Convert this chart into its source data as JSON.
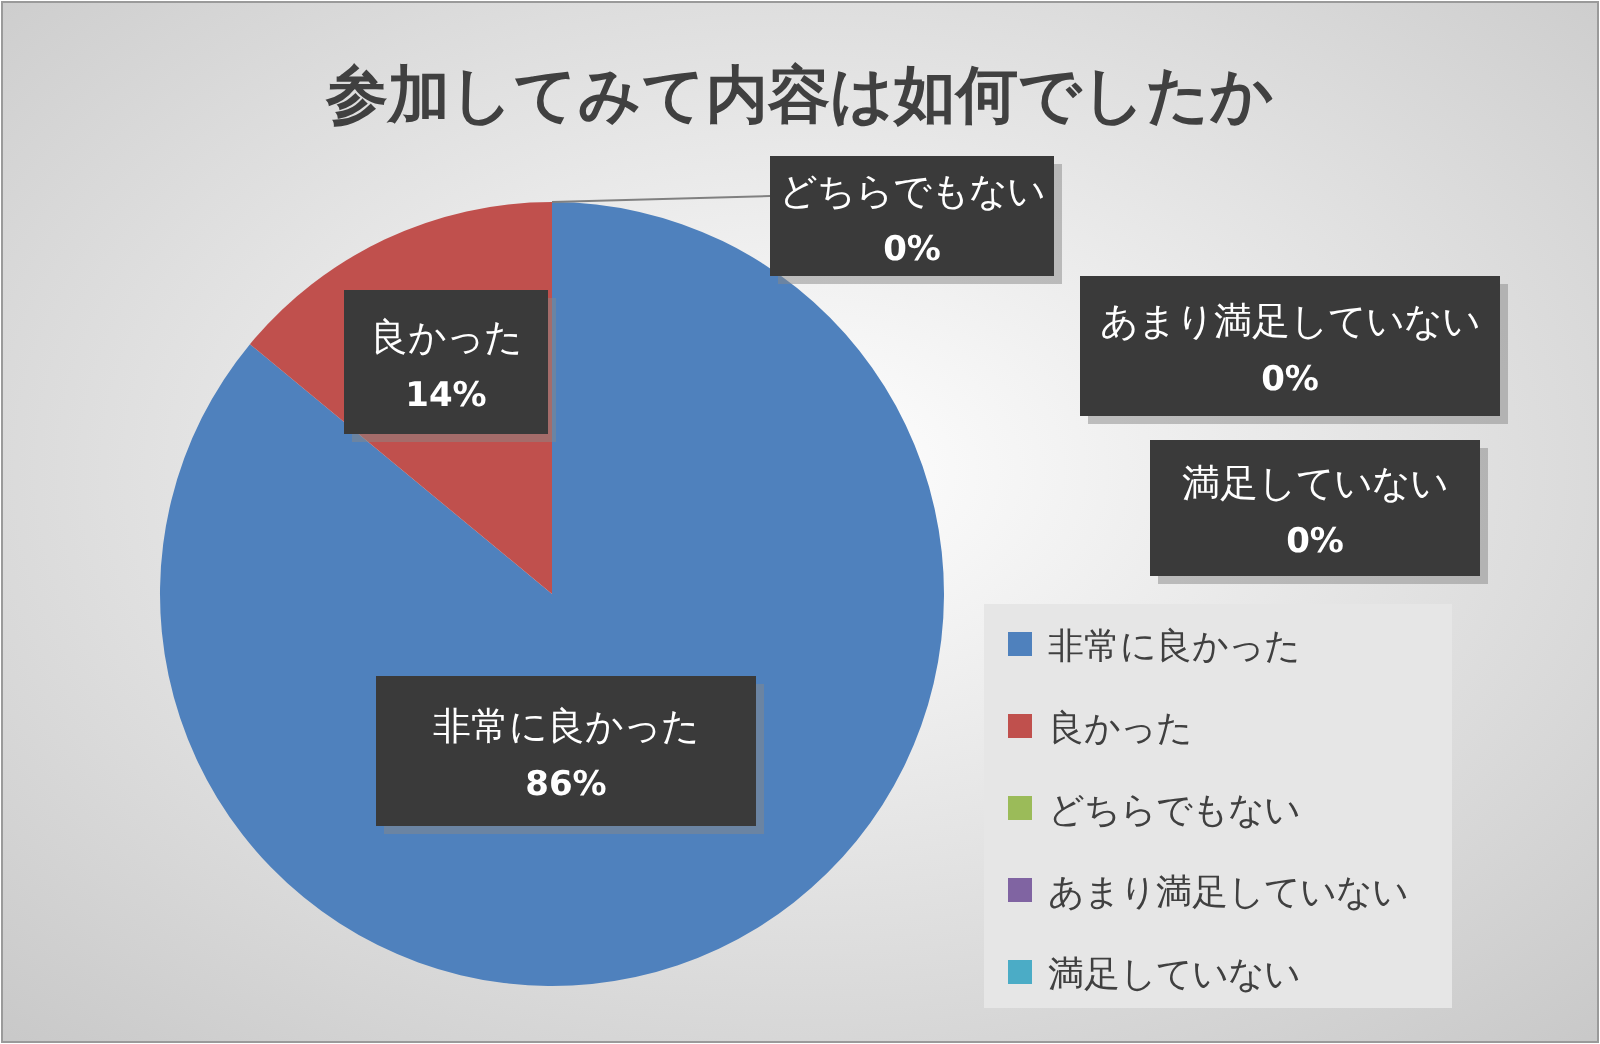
{
  "chart_data": {
    "type": "pie",
    "title": "参加してみて内容は如何でしたか",
    "categories": [
      "非常に良かった",
      "良かった",
      "どちらでもない",
      "あまり満足していない",
      "満足していない"
    ],
    "values": [
      86,
      14,
      0,
      0,
      0
    ],
    "value_labels": [
      "86%",
      "14%",
      "0%",
      "0%",
      "0%"
    ],
    "colors": [
      "#4f81bd",
      "#c0504d",
      "#9bbb59",
      "#8064a2",
      "#4bacc6"
    ],
    "legend": "right"
  }
}
